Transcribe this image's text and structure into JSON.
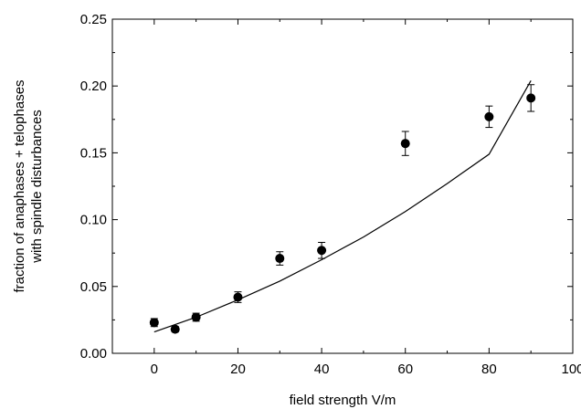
{
  "chart_data": {
    "type": "scatter",
    "xlabel": "field strength V/m",
    "ylabel_lines": [
      "fraction of anaphases + telophases",
      "with spindle disturbances"
    ],
    "xlim": [
      -10,
      100
    ],
    "ylim": [
      0.0,
      0.25
    ],
    "xticks": [
      "0",
      "20",
      "40",
      "60",
      "80",
      "100"
    ],
    "yticks": [
      "0.00",
      "0.05",
      "0.10",
      "0.15",
      "0.20",
      "0.25"
    ],
    "grid": false,
    "series": [
      {
        "marker": "filled-circle",
        "color": "#000000",
        "x": [
          0,
          5,
          10,
          20,
          30,
          40,
          60,
          80,
          90
        ],
        "y": [
          0.023,
          0.018,
          0.027,
          0.042,
          0.071,
          0.077,
          0.157,
          0.177,
          0.191
        ],
        "err": [
          0.003,
          0.002,
          0.003,
          0.004,
          0.005,
          0.006,
          0.009,
          0.008,
          0.01
        ]
      },
      {
        "type": "line",
        "style": "fit-curve",
        "color": "#000000",
        "x": [
          0,
          10,
          20,
          30,
          40,
          50,
          60,
          70,
          80,
          90
        ],
        "y": [
          0.016,
          0.027,
          0.04,
          0.054,
          0.07,
          0.087,
          0.106,
          0.127,
          0.149,
          0.204
        ]
      }
    ]
  }
}
